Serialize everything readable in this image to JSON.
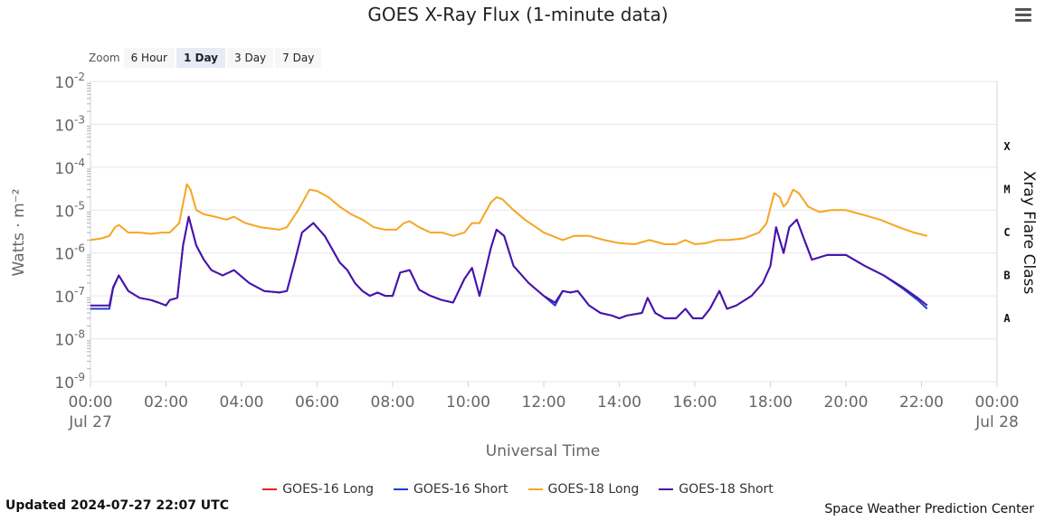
{
  "header": {
    "title": "GOES X-Ray Flux (1-minute data)",
    "menu_icon": "hamburger-menu-icon"
  },
  "zoom": {
    "label": "Zoom",
    "buttons": [
      "6 Hour",
      "1 Day",
      "3 Day",
      "7 Day"
    ],
    "selected": "1 Day"
  },
  "footer": {
    "updated": "Updated 2024-07-27 22:07 UTC",
    "credit": "Space Weather Prediction Center"
  },
  "colors": {
    "goes16_long": "#e8211d",
    "goes16_short": "#1f3fd6",
    "goes18_long": "#f5a623",
    "goes18_short": "#4b12a8",
    "grid": "#e6e6e6",
    "axis": "#ccd6eb"
  },
  "chart_data": {
    "type": "line",
    "title": "GOES X-Ray Flux (1-minute data)",
    "xlabel": "Universal Time",
    "ylabel": "Watts · m⁻²",
    "y2label": "Xray Flare Class",
    "yscale": "log",
    "ylim": [
      1e-09,
      0.01
    ],
    "xlim": [
      0,
      24
    ],
    "x_unit": "hours UTC",
    "grid": true,
    "legend_position": "bottom-center",
    "y_ticks": [
      {
        "base": "10",
        "exp": "-9",
        "value": 1e-09
      },
      {
        "base": "10",
        "exp": "-8",
        "value": 1e-08
      },
      {
        "base": "10",
        "exp": "-7",
        "value": 1e-07
      },
      {
        "base": "10",
        "exp": "-6",
        "value": 1e-06
      },
      {
        "base": "10",
        "exp": "-5",
        "value": 1e-05
      },
      {
        "base": "10",
        "exp": "-4",
        "value": 0.0001
      },
      {
        "base": "10",
        "exp": "-3",
        "value": 0.001
      },
      {
        "base": "10",
        "exp": "-2",
        "value": 0.01
      }
    ],
    "x_ticks": [
      {
        "label": "00:00",
        "sub": "Jul 27",
        "value": 0
      },
      {
        "label": "02:00",
        "sub": "",
        "value": 2
      },
      {
        "label": "04:00",
        "sub": "",
        "value": 4
      },
      {
        "label": "06:00",
        "sub": "",
        "value": 6
      },
      {
        "label": "08:00",
        "sub": "",
        "value": 8
      },
      {
        "label": "10:00",
        "sub": "",
        "value": 10
      },
      {
        "label": "12:00",
        "sub": "",
        "value": 12
      },
      {
        "label": "14:00",
        "sub": "",
        "value": 14
      },
      {
        "label": "16:00",
        "sub": "",
        "value": 16
      },
      {
        "label": "18:00",
        "sub": "",
        "value": 18
      },
      {
        "label": "20:00",
        "sub": "",
        "value": 20
      },
      {
        "label": "22:00",
        "sub": "",
        "value": 22
      },
      {
        "label": "00:00",
        "sub": "Jul 28",
        "value": 24
      }
    ],
    "flare_classes": [
      {
        "label": "X",
        "value": 0.000316
      },
      {
        "label": "M",
        "value": 3.16e-05
      },
      {
        "label": "C",
        "value": 3.16e-06
      },
      {
        "label": "B",
        "value": 3.16e-07
      },
      {
        "label": "A",
        "value": 3.16e-08
      }
    ],
    "series": [
      {
        "name": "GOES-16 Long",
        "color": "#e8211d",
        "x": [],
        "y": []
      },
      {
        "name": "GOES-16 Short",
        "color": "#1f3fd6",
        "x": [
          0,
          0.2,
          0.5,
          0.6,
          0.75,
          1.0,
          1.3,
          1.6,
          1.8,
          2.0,
          2.1,
          2.3,
          2.45,
          2.6,
          2.8,
          3.0,
          3.2,
          3.5,
          3.8,
          4.2,
          4.6,
          5.0,
          5.2,
          5.4,
          5.6,
          5.9,
          6.2,
          6.6,
          6.8,
          7.0,
          7.2,
          7.4,
          7.6,
          7.8,
          8.0,
          8.2,
          8.45,
          8.7,
          9.0,
          9.3,
          9.6,
          9.9,
          10.1,
          10.3,
          10.6,
          10.75,
          10.95,
          11.2,
          11.6,
          12.0,
          12.3,
          12.5,
          12.7,
          12.9,
          13.2,
          13.5,
          13.8,
          14.0,
          14.2,
          14.6,
          14.75,
          14.95,
          15.2,
          15.5,
          15.75,
          15.95,
          16.2,
          16.4,
          16.65,
          16.85,
          17.1,
          17.5,
          17.8,
          18.0,
          18.15,
          18.35,
          18.5,
          18.7,
          18.9,
          19.1,
          19.5,
          20.0,
          20.5,
          21.0,
          21.5,
          21.9,
          22.15
        ],
        "y": [
          5e-08,
          5e-08,
          5e-08,
          1.5e-07,
          3e-07,
          1.3e-07,
          9e-08,
          8e-08,
          7e-08,
          6e-08,
          8e-08,
          9e-08,
          1.5e-06,
          7e-06,
          1.5e-06,
          7e-07,
          4e-07,
          3e-07,
          4e-07,
          2e-07,
          1.3e-07,
          1.2e-07,
          1.3e-07,
          6e-07,
          3e-06,
          5e-06,
          2.5e-06,
          6e-07,
          4e-07,
          2e-07,
          1.3e-07,
          1e-07,
          1.2e-07,
          1e-07,
          1e-07,
          3.5e-07,
          4e-07,
          1.4e-07,
          1e-07,
          8e-08,
          7e-08,
          2.5e-07,
          4.5e-07,
          1e-07,
          1.3e-06,
          3.5e-06,
          2.5e-06,
          5e-07,
          2e-07,
          1e-07,
          6e-08,
          1.3e-07,
          1.2e-07,
          1.3e-07,
          6e-08,
          4e-08,
          3.5e-08,
          3e-08,
          3.5e-08,
          4e-08,
          9e-08,
          4e-08,
          3e-08,
          3e-08,
          5e-08,
          3e-08,
          3e-08,
          5e-08,
          1.3e-07,
          5e-08,
          6e-08,
          1e-07,
          2e-07,
          5e-07,
          4e-06,
          1e-06,
          4e-06,
          6e-06,
          2e-06,
          7e-07,
          9e-07,
          9e-07,
          5e-07,
          3e-07,
          1.5e-07,
          8e-08,
          5e-08
        ]
      },
      {
        "name": "GOES-18 Long",
        "color": "#f5a623",
        "x": [
          0,
          0.3,
          0.5,
          0.65,
          0.75,
          1.0,
          1.3,
          1.6,
          1.9,
          2.1,
          2.35,
          2.55,
          2.65,
          2.8,
          3.0,
          3.3,
          3.6,
          3.8,
          4.1,
          4.5,
          5.0,
          5.2,
          5.5,
          5.8,
          6.0,
          6.3,
          6.6,
          6.9,
          7.2,
          7.5,
          7.8,
          8.1,
          8.3,
          8.45,
          8.7,
          9.0,
          9.3,
          9.6,
          9.9,
          10.1,
          10.3,
          10.6,
          10.75,
          10.9,
          11.2,
          11.5,
          12.0,
          12.5,
          12.8,
          13.2,
          13.6,
          14.0,
          14.4,
          14.8,
          15.2,
          15.5,
          15.75,
          16.0,
          16.3,
          16.6,
          16.9,
          17.3,
          17.7,
          17.9,
          18.1,
          18.25,
          18.35,
          18.45,
          18.6,
          18.75,
          19.0,
          19.3,
          19.6,
          20.0,
          20.4,
          20.9,
          21.4,
          21.8,
          22.15
        ],
        "y": [
          2e-06,
          2.2e-06,
          2.5e-06,
          4e-06,
          4.5e-06,
          3e-06,
          3e-06,
          2.8e-06,
          3e-06,
          3e-06,
          5e-06,
          4e-05,
          3e-05,
          1e-05,
          8e-06,
          7e-06,
          6e-06,
          7e-06,
          5e-06,
          4e-06,
          3.5e-06,
          4e-06,
          1e-05,
          3e-05,
          2.8e-05,
          2e-05,
          1.2e-05,
          8e-06,
          6e-06,
          4e-06,
          3.5e-06,
          3.5e-06,
          5e-06,
          5.5e-06,
          4e-06,
          3e-06,
          3e-06,
          2.5e-06,
          3e-06,
          5e-06,
          5e-06,
          1.5e-05,
          2e-05,
          1.8e-05,
          1e-05,
          6e-06,
          3e-06,
          2e-06,
          2.5e-06,
          2.5e-06,
          2e-06,
          1.7e-06,
          1.6e-06,
          2e-06,
          1.6e-06,
          1.6e-06,
          2e-06,
          1.6e-06,
          1.7e-06,
          2e-06,
          2e-06,
          2.2e-06,
          3e-06,
          5e-06,
          2.5e-05,
          2e-05,
          1.2e-05,
          1.5e-05,
          3e-05,
          2.5e-05,
          1.2e-05,
          9e-06,
          1e-05,
          1e-05,
          8e-06,
          6e-06,
          4e-06,
          3e-06,
          2.5e-06
        ]
      },
      {
        "name": "GOES-18 Short",
        "color": "#4b12a8",
        "x": [
          0,
          0.2,
          0.5,
          0.6,
          0.75,
          1.0,
          1.3,
          1.6,
          1.8,
          2.0,
          2.1,
          2.3,
          2.45,
          2.6,
          2.8,
          3.0,
          3.2,
          3.5,
          3.8,
          4.2,
          4.6,
          5.0,
          5.2,
          5.4,
          5.6,
          5.9,
          6.2,
          6.6,
          6.8,
          7.0,
          7.2,
          7.4,
          7.6,
          7.8,
          8.0,
          8.2,
          8.45,
          8.7,
          9.0,
          9.3,
          9.6,
          9.9,
          10.1,
          10.3,
          10.6,
          10.75,
          10.95,
          11.2,
          11.6,
          12.0,
          12.3,
          12.5,
          12.7,
          12.9,
          13.2,
          13.5,
          13.8,
          14.0,
          14.2,
          14.6,
          14.75,
          14.95,
          15.2,
          15.5,
          15.75,
          15.95,
          16.2,
          16.4,
          16.65,
          16.85,
          17.1,
          17.5,
          17.8,
          18.0,
          18.15,
          18.35,
          18.5,
          18.7,
          18.9,
          19.1,
          19.5,
          20.0,
          20.5,
          21.0,
          21.5,
          21.9,
          22.15
        ],
        "y": [
          6e-08,
          6e-08,
          6e-08,
          1.6e-07,
          3e-07,
          1.3e-07,
          9e-08,
          8e-08,
          7e-08,
          6e-08,
          8e-08,
          9e-08,
          1.5e-06,
          7e-06,
          1.5e-06,
          7e-07,
          4e-07,
          3e-07,
          4e-07,
          2e-07,
          1.3e-07,
          1.2e-07,
          1.3e-07,
          6e-07,
          3e-06,
          5e-06,
          2.5e-06,
          6e-07,
          4e-07,
          2e-07,
          1.3e-07,
          1e-07,
          1.2e-07,
          1e-07,
          1e-07,
          3.5e-07,
          4e-07,
          1.4e-07,
          1e-07,
          8e-08,
          7e-08,
          2.5e-07,
          4.5e-07,
          1e-07,
          1.3e-06,
          3.5e-06,
          2.5e-06,
          5e-07,
          2e-07,
          1e-07,
          7e-08,
          1.3e-07,
          1.2e-07,
          1.3e-07,
          6e-08,
          4e-08,
          3.5e-08,
          3e-08,
          3.5e-08,
          4e-08,
          9e-08,
          4e-08,
          3e-08,
          3e-08,
          5e-08,
          3e-08,
          3e-08,
          5e-08,
          1.3e-07,
          5e-08,
          6e-08,
          1e-07,
          2e-07,
          5e-07,
          4e-06,
          1e-06,
          4e-06,
          6e-06,
          2e-06,
          7e-07,
          9e-07,
          9e-07,
          5e-07,
          3e-07,
          1.6e-07,
          9e-08,
          6e-08
        ]
      }
    ]
  }
}
